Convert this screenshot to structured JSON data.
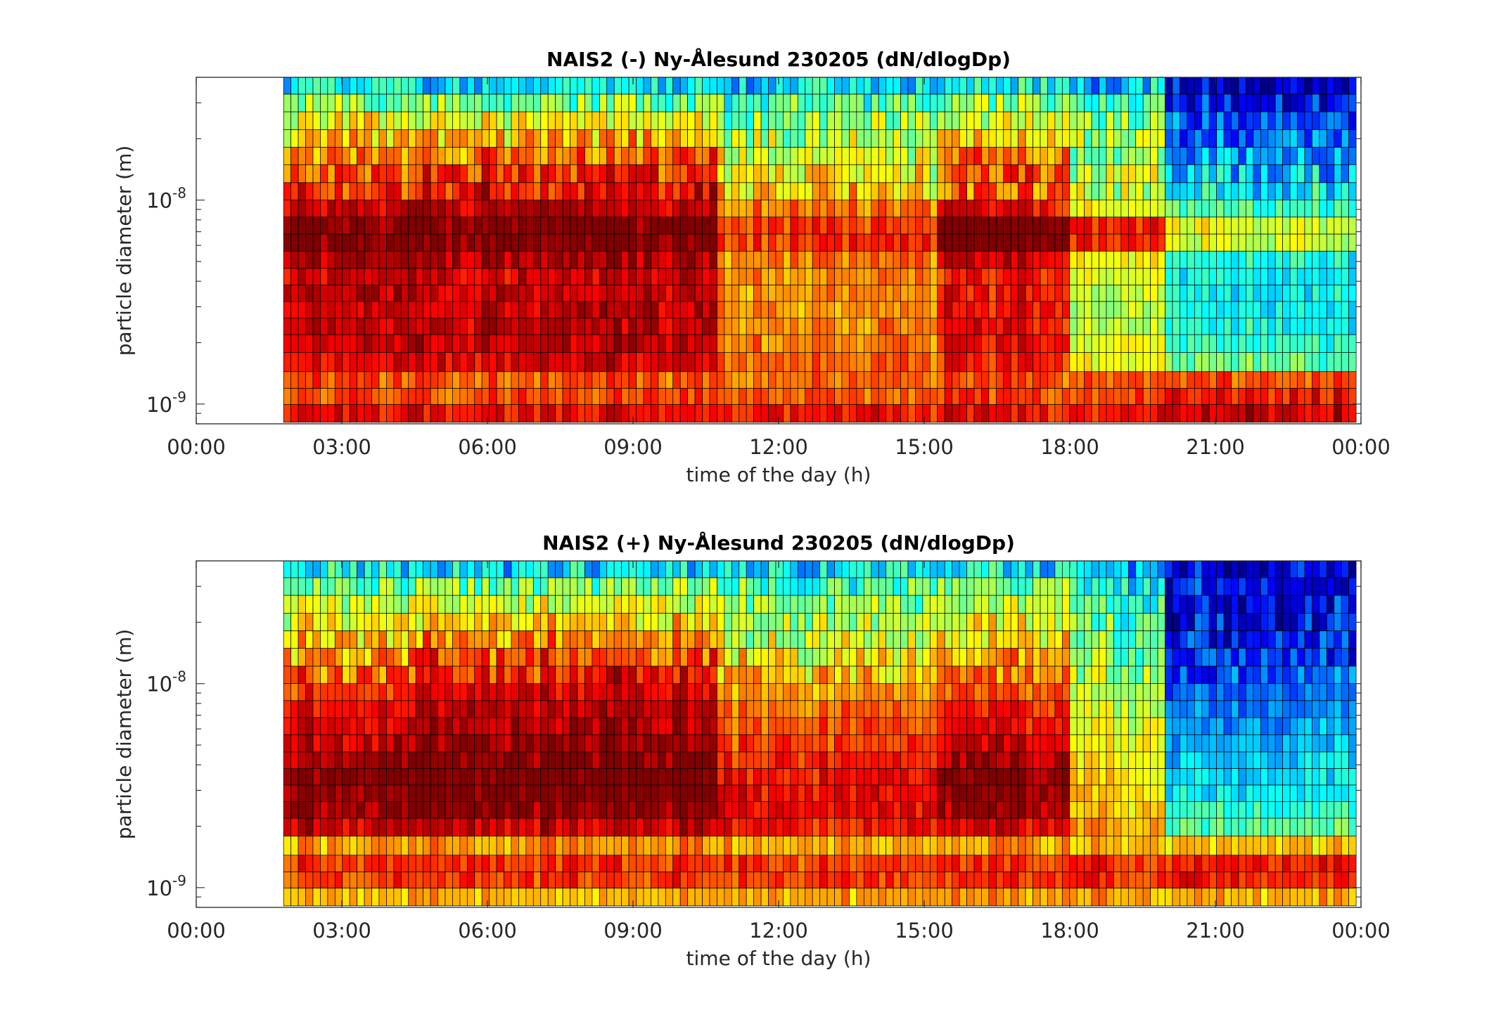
{
  "chart_data": [
    {
      "type": "heatmap",
      "title": "NAIS2 (-) Ny-Ålesund 230205 (dN/dlogDp)",
      "xlabel": "time of the day (h)",
      "ylabel": "particle diameter (m)",
      "y_scale": "log",
      "xlim_hours": [
        0,
        24
      ],
      "ylim_m": [
        8e-10,
        4e-08
      ],
      "x_ticks": [
        "00:00",
        "03:00",
        "06:00",
        "09:00",
        "12:00",
        "15:00",
        "18:00",
        "21:00",
        "00:00"
      ],
      "y_ticks": [
        {
          "base": "10",
          "exp": "-9"
        },
        {
          "base": "10",
          "exp": "-8"
        }
      ],
      "data_start_hour": 1.8,
      "data_end_hour": 23.9,
      "colormap": [
        "#00007f",
        "#0000ff",
        "#007fff",
        "#00ffff",
        "#7fff7f",
        "#ffff00",
        "#ff7f00",
        "#ff0000",
        "#7f0000"
      ],
      "size_bins_m": [
        9e-10,
        1.1e-09,
        1.3e-09,
        1.6e-09,
        2e-09,
        2.4e-09,
        2.9e-09,
        3.5e-09,
        4.2e-09,
        5.1e-09,
        6.2e-09,
        7.5e-09,
        9.1e-09,
        1.1e-08,
        1.35e-08,
        1.65e-08,
        2e-08,
        2.45e-08,
        3e-08,
        3.65e-08
      ],
      "level_by_period": [
        {
          "from_hour": 1.8,
          "to_hour": 4.5,
          "levels": [
            7.0,
            6.4,
            6.3,
            7.0,
            7.2,
            7.3,
            7.2,
            7.4,
            7.3,
            7.6,
            7.9,
            7.9,
            7.3,
            6.6,
            6.2,
            5.8,
            5.3,
            4.8,
            4.1,
            3.0
          ]
        },
        {
          "from_hour": 4.5,
          "to_hour": 10.8,
          "levels": [
            7.0,
            6.4,
            6.3,
            7.2,
            7.4,
            7.4,
            7.4,
            7.4,
            7.3,
            7.6,
            8.0,
            8.0,
            7.5,
            7.0,
            6.7,
            6.2,
            5.5,
            4.8,
            4.0,
            2.8
          ]
        },
        {
          "from_hour": 10.8,
          "to_hour": 15.3,
          "levels": [
            6.9,
            6.3,
            6.1,
            6.2,
            6.0,
            5.9,
            5.8,
            5.8,
            5.8,
            6.0,
            6.6,
            6.6,
            6.0,
            5.4,
            5.0,
            4.7,
            4.4,
            4.1,
            3.6,
            2.8
          ]
        },
        {
          "from_hour": 15.3,
          "to_hour": 18.0,
          "levels": [
            7.0,
            6.6,
            6.4,
            6.8,
            6.9,
            7.0,
            7.0,
            6.9,
            6.8,
            7.2,
            8.2,
            8.3,
            7.0,
            6.2,
            6.4,
            6.2,
            5.4,
            4.6,
            4.0,
            3.0
          ]
        },
        {
          "from_hour": 18.0,
          "to_hour": 20.0,
          "levels": [
            7.0,
            6.6,
            6.3,
            5.0,
            4.8,
            4.6,
            4.5,
            4.6,
            4.7,
            5.0,
            6.8,
            6.8,
            5.0,
            4.6,
            4.6,
            4.4,
            4.2,
            4.0,
            3.4,
            2.6
          ]
        },
        {
          "from_hour": 20.0,
          "to_hour": 23.9,
          "levels": [
            7.4,
            6.9,
            6.4,
            3.8,
            3.4,
            3.2,
            3.0,
            3.0,
            3.0,
            3.2,
            4.6,
            4.8,
            3.6,
            3.0,
            2.6,
            2.2,
            1.8,
            1.6,
            1.2,
            0.9
          ]
        }
      ]
    },
    {
      "type": "heatmap",
      "title": "NAIS2 (+) Ny-Ålesund 230205 (dN/dlogDp)",
      "xlabel": "time of the day (h)",
      "ylabel": "particle diameter (m)",
      "y_scale": "log",
      "xlim_hours": [
        0,
        24
      ],
      "ylim_m": [
        8e-10,
        4e-08
      ],
      "x_ticks": [
        "00:00",
        "03:00",
        "06:00",
        "09:00",
        "12:00",
        "15:00",
        "18:00",
        "21:00",
        "00:00"
      ],
      "y_ticks": [
        {
          "base": "10",
          "exp": "-9"
        },
        {
          "base": "10",
          "exp": "-8"
        }
      ],
      "data_start_hour": 1.8,
      "data_end_hour": 23.9,
      "colormap": [
        "#00007f",
        "#0000ff",
        "#007fff",
        "#00ffff",
        "#7fff7f",
        "#ffff00",
        "#ff7f00",
        "#ff0000",
        "#7f0000"
      ],
      "size_bins_m": [
        9e-10,
        1.1e-09,
        1.3e-09,
        1.6e-09,
        2e-09,
        2.4e-09,
        2.9e-09,
        3.5e-09,
        4.2e-09,
        5.1e-09,
        6.2e-09,
        7.5e-09,
        9.1e-09,
        1.1e-08,
        1.35e-08,
        1.65e-08,
        2e-08,
        2.45e-08,
        3e-08,
        3.65e-08
      ],
      "level_by_period": [
        {
          "from_hour": 1.8,
          "to_hour": 4.5,
          "levels": [
            5.6,
            6.6,
            6.6,
            5.8,
            7.4,
            7.8,
            8.0,
            8.0,
            7.6,
            7.4,
            7.2,
            7.0,
            6.6,
            6.2,
            5.8,
            5.4,
            5.0,
            4.6,
            4.0,
            3.0
          ]
        },
        {
          "from_hour": 4.5,
          "to_hour": 10.8,
          "levels": [
            5.6,
            6.6,
            6.6,
            5.8,
            7.4,
            7.9,
            8.2,
            8.2,
            8.0,
            7.8,
            7.6,
            7.4,
            7.2,
            6.8,
            6.4,
            5.9,
            5.3,
            4.7,
            4.0,
            2.8
          ]
        },
        {
          "from_hour": 10.8,
          "to_hour": 15.3,
          "levels": [
            5.6,
            6.5,
            6.5,
            5.6,
            6.8,
            7.0,
            7.0,
            6.9,
            6.7,
            6.5,
            6.3,
            6.1,
            5.8,
            5.4,
            5.0,
            4.6,
            4.3,
            4.0,
            3.6,
            2.8
          ]
        },
        {
          "from_hour": 15.3,
          "to_hour": 18.0,
          "levels": [
            5.8,
            6.7,
            6.7,
            5.8,
            7.2,
            7.7,
            8.0,
            7.9,
            7.6,
            7.3,
            7.0,
            6.8,
            6.4,
            6.0,
            5.6,
            5.3,
            4.9,
            4.5,
            4.0,
            3.0
          ]
        },
        {
          "from_hour": 18.0,
          "to_hour": 20.0,
          "levels": [
            5.6,
            6.6,
            6.6,
            5.4,
            5.6,
            5.4,
            5.3,
            5.2,
            5.0,
            4.9,
            4.8,
            4.6,
            4.4,
            4.2,
            4.0,
            3.8,
            3.6,
            3.4,
            3.0,
            2.4
          ]
        },
        {
          "from_hour": 20.0,
          "to_hour": 23.9,
          "levels": [
            5.6,
            6.8,
            6.8,
            5.4,
            3.6,
            3.3,
            3.0,
            2.8,
            2.6,
            2.4,
            2.2,
            2.0,
            1.8,
            1.6,
            1.4,
            1.2,
            1.0,
            1.0,
            1.0,
            0.8
          ]
        }
      ]
    }
  ]
}
